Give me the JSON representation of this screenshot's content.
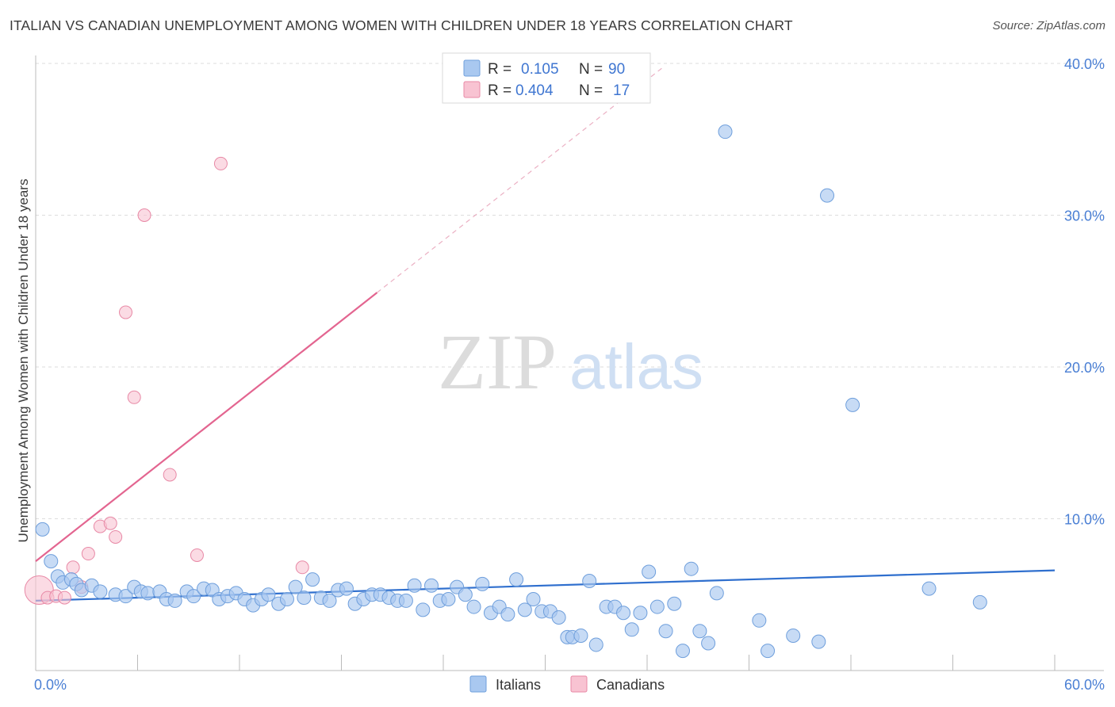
{
  "header": {
    "title": "ITALIAN VS CANADIAN UNEMPLOYMENT AMONG WOMEN WITH CHILDREN UNDER 18 YEARS CORRELATION CHART",
    "source": "Source: ZipAtlas.com"
  },
  "watermark": {
    "zip": "ZIP",
    "atlas": "atlas"
  },
  "legend": {
    "r_label": "R =",
    "n_label": "N =",
    "italians": {
      "r": "0.105",
      "n": "90"
    },
    "canadians": {
      "r": "0.404",
      "n": "17"
    }
  },
  "colors": {
    "italians_fill": "#a9c8f0",
    "italians_stroke": "#6f9fdc",
    "italians_line": "#2f6fce",
    "canadians_fill": "#f8c3d2",
    "canadians_stroke": "#e889a6",
    "canadians_line": "#e36590",
    "grid": "#dddddd",
    "tick_text": "#4a7fd4"
  },
  "chart_data": {
    "type": "scatter",
    "title": "ITALIAN VS CANADIAN UNEMPLOYMENT AMONG WOMEN WITH CHILDREN UNDER 18 YEARS CORRELATION CHART",
    "xlabel": "",
    "ylabel": "Unemployment Among Women with Children Under 18 years",
    "xlim": [
      0,
      60
    ],
    "ylim": [
      0,
      40
    ],
    "x_tick_labels": [
      "0.0%",
      "60.0%"
    ],
    "y_ticks": [
      10,
      20,
      30,
      40
    ],
    "y_tick_labels": [
      "10.0%",
      "20.0%",
      "30.0%",
      "40.0%"
    ],
    "grid": true,
    "legend_position": "bottom",
    "series": [
      {
        "name": "Italians",
        "r": 0.105,
        "n": 90,
        "trend": {
          "x": [
            0,
            60
          ],
          "y": [
            4.6,
            6.6
          ],
          "style": "solid"
        },
        "points": [
          [
            0.4,
            9.3
          ],
          [
            0.9,
            7.2
          ],
          [
            1.3,
            6.2
          ],
          [
            1.6,
            5.8
          ],
          [
            2.1,
            6.0
          ],
          [
            2.4,
            5.7
          ],
          [
            2.7,
            5.3
          ],
          [
            3.3,
            5.6
          ],
          [
            3.8,
            5.2
          ],
          [
            4.7,
            5.0
          ],
          [
            5.3,
            4.9
          ],
          [
            5.8,
            5.5
          ],
          [
            6.2,
            5.2
          ],
          [
            6.6,
            5.1
          ],
          [
            7.3,
            5.2
          ],
          [
            7.7,
            4.7
          ],
          [
            8.2,
            4.6
          ],
          [
            8.9,
            5.2
          ],
          [
            9.3,
            4.9
          ],
          [
            9.9,
            5.4
          ],
          [
            10.4,
            5.3
          ],
          [
            10.8,
            4.7
          ],
          [
            11.3,
            4.9
          ],
          [
            11.8,
            5.1
          ],
          [
            12.3,
            4.7
          ],
          [
            12.8,
            4.3
          ],
          [
            13.3,
            4.7
          ],
          [
            13.7,
            5.0
          ],
          [
            14.3,
            4.4
          ],
          [
            14.8,
            4.7
          ],
          [
            15.3,
            5.5
          ],
          [
            15.8,
            4.8
          ],
          [
            16.3,
            6.0
          ],
          [
            16.8,
            4.8
          ],
          [
            17.3,
            4.6
          ],
          [
            17.8,
            5.3
          ],
          [
            18.3,
            5.4
          ],
          [
            18.8,
            4.4
          ],
          [
            19.3,
            4.7
          ],
          [
            19.8,
            5.0
          ],
          [
            20.3,
            5.0
          ],
          [
            20.8,
            4.8
          ],
          [
            21.3,
            4.6
          ],
          [
            21.8,
            4.6
          ],
          [
            22.3,
            5.6
          ],
          [
            22.8,
            4.0
          ],
          [
            23.3,
            5.6
          ],
          [
            23.8,
            4.6
          ],
          [
            24.3,
            4.7
          ],
          [
            24.8,
            5.5
          ],
          [
            25.3,
            5.0
          ],
          [
            25.8,
            4.2
          ],
          [
            26.3,
            5.7
          ],
          [
            26.8,
            3.8
          ],
          [
            27.3,
            4.2
          ],
          [
            27.8,
            3.7
          ],
          [
            28.3,
            6.0
          ],
          [
            28.8,
            4.0
          ],
          [
            29.3,
            4.7
          ],
          [
            29.8,
            3.9
          ],
          [
            30.3,
            3.9
          ],
          [
            30.8,
            3.5
          ],
          [
            31.3,
            2.2
          ],
          [
            31.6,
            2.2
          ],
          [
            32.1,
            2.3
          ],
          [
            32.6,
            5.9
          ],
          [
            33.0,
            1.7
          ],
          [
            33.6,
            4.2
          ],
          [
            34.1,
            4.2
          ],
          [
            34.6,
            3.8
          ],
          [
            35.1,
            2.7
          ],
          [
            35.6,
            3.8
          ],
          [
            36.1,
            6.5
          ],
          [
            36.6,
            4.2
          ],
          [
            37.1,
            2.6
          ],
          [
            37.6,
            4.4
          ],
          [
            38.1,
            1.3
          ],
          [
            38.6,
            6.7
          ],
          [
            39.1,
            2.6
          ],
          [
            39.6,
            1.8
          ],
          [
            40.1,
            5.1
          ],
          [
            40.6,
            35.5
          ],
          [
            42.6,
            3.3
          ],
          [
            43.1,
            1.3
          ],
          [
            44.6,
            2.3
          ],
          [
            46.6,
            31.3
          ],
          [
            46.1,
            1.9
          ],
          [
            48.1,
            17.5
          ],
          [
            52.6,
            5.4
          ],
          [
            55.6,
            4.5
          ]
        ]
      },
      {
        "name": "Canadians",
        "r": 0.404,
        "n": 17,
        "trend": {
          "x": [
            0,
            20.1
          ],
          "y": [
            7.2,
            24.9
          ],
          "style": "solid",
          "extended_x": [
            20.1,
            37.0
          ],
          "extended_y": [
            24.9,
            39.8
          ],
          "extended_style": "dashed"
        },
        "points": [
          [
            0.2,
            5.3
          ],
          [
            0.7,
            4.8
          ],
          [
            1.2,
            4.9
          ],
          [
            1.7,
            4.8
          ],
          [
            2.2,
            6.8
          ],
          [
            2.7,
            5.5
          ],
          [
            3.1,
            7.7
          ],
          [
            3.8,
            9.5
          ],
          [
            4.4,
            9.7
          ],
          [
            4.7,
            8.8
          ],
          [
            5.3,
            23.6
          ],
          [
            5.8,
            18.0
          ],
          [
            6.4,
            30.0
          ],
          [
            7.9,
            12.9
          ],
          [
            9.5,
            7.6
          ],
          [
            10.9,
            33.4
          ],
          [
            15.7,
            6.8
          ]
        ]
      }
    ]
  }
}
